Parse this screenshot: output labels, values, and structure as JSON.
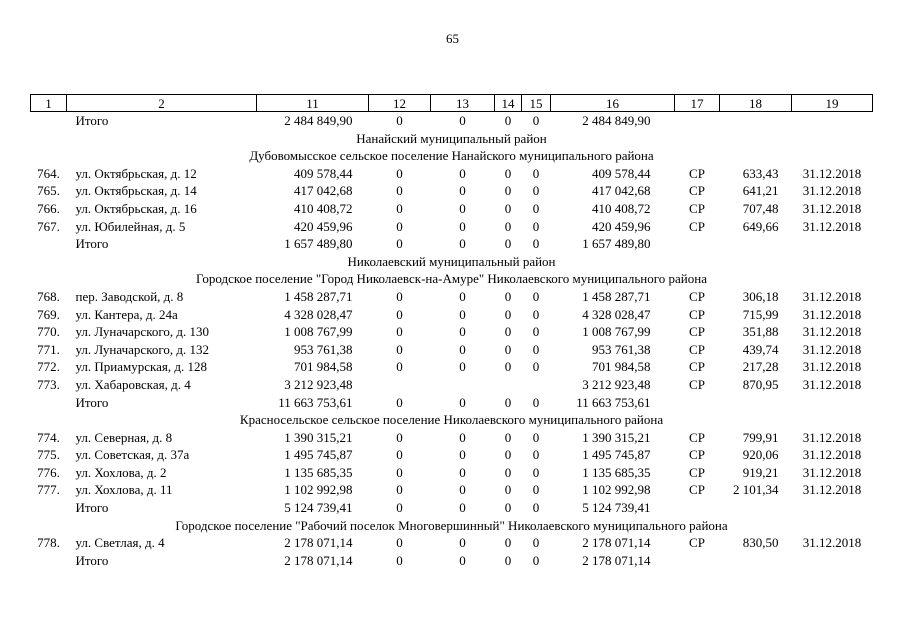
{
  "page": {
    "number": "65"
  },
  "table": {
    "header": [
      "1",
      "2",
      "11",
      "12",
      "13",
      "14",
      "15",
      "16",
      "17",
      "18",
      "19"
    ],
    "rows": [
      {
        "type": "total",
        "cells": [
          "",
          "Итого",
          "2 484 849,90",
          "0",
          "0",
          "0",
          "0",
          "2 484 849,90",
          "",
          "",
          ""
        ]
      },
      {
        "type": "section",
        "text": "Нанайский муниципальный район"
      },
      {
        "type": "section",
        "text": "Дубовомысское сельское поселение Нанайского муниципального района"
      },
      {
        "type": "data",
        "cells": [
          "764.",
          "ул. Октябрьская, д. 12",
          "409 578,44",
          "0",
          "0",
          "0",
          "0",
          "409 578,44",
          "СР",
          "633,43",
          "31.12.2018"
        ]
      },
      {
        "type": "data",
        "cells": [
          "765.",
          "ул. Октябрьская, д. 14",
          "417 042,68",
          "0",
          "0",
          "0",
          "0",
          "417 042,68",
          "СР",
          "641,21",
          "31.12.2018"
        ]
      },
      {
        "type": "data",
        "cells": [
          "766.",
          "ул. Октябрьская, д. 16",
          "410 408,72",
          "0",
          "0",
          "0",
          "0",
          "410 408,72",
          "СР",
          "707,48",
          "31.12.2018"
        ]
      },
      {
        "type": "data",
        "cells": [
          "767.",
          "ул. Юбилейная, д. 5",
          "420 459,96",
          "0",
          "0",
          "0",
          "0",
          "420 459,96",
          "СР",
          "649,66",
          "31.12.2018"
        ]
      },
      {
        "type": "total",
        "cells": [
          "",
          "Итого",
          "1 657 489,80",
          "0",
          "0",
          "0",
          "0",
          "1 657 489,80",
          "",
          "",
          ""
        ]
      },
      {
        "type": "section",
        "text": "Николаевский муниципальный район"
      },
      {
        "type": "section",
        "text": "Городское поселение \"Город Николаевск-на-Амуре\" Николаевского муниципального района"
      },
      {
        "type": "data",
        "cells": [
          "768.",
          "пер. Заводской, д. 8",
          "1 458 287,71",
          "0",
          "0",
          "0",
          "0",
          "1 458 287,71",
          "СР",
          "306,18",
          "31.12.2018"
        ]
      },
      {
        "type": "data",
        "cells": [
          "769.",
          "ул. Кантера, д. 24а",
          "4 328 028,47",
          "0",
          "0",
          "0",
          "0",
          "4 328 028,47",
          "СР",
          "715,99",
          "31.12.2018"
        ]
      },
      {
        "type": "data",
        "cells": [
          "770.",
          "ул. Луначарского, д. 130",
          "1 008 767,99",
          "0",
          "0",
          "0",
          "0",
          "1 008 767,99",
          "СР",
          "351,88",
          "31.12.2018"
        ]
      },
      {
        "type": "data",
        "cells": [
          "771.",
          "ул. Луначарского, д. 132",
          "953 761,38",
          "0",
          "0",
          "0",
          "0",
          "953 761,38",
          "СР",
          "439,74",
          "31.12.2018"
        ]
      },
      {
        "type": "data",
        "cells": [
          "772.",
          "ул. Приамурская, д. 128",
          "701 984,58",
          "0",
          "0",
          "0",
          "0",
          "701 984,58",
          "СР",
          "217,28",
          "31.12.2018"
        ]
      },
      {
        "type": "data",
        "cells": [
          "773.",
          "ул. Хабаровская, д. 4",
          "3 212 923,48",
          "",
          "",
          "",
          "",
          "3 212 923,48",
          "СР",
          "870,95",
          "31.12.2018"
        ]
      },
      {
        "type": "total",
        "cells": [
          "",
          "Итого",
          "11 663 753,61",
          "0",
          "0",
          "0",
          "0",
          "11 663 753,61",
          "",
          "",
          ""
        ]
      },
      {
        "type": "section",
        "text": "Красносельское сельское поселение Николаевского муниципального района"
      },
      {
        "type": "data",
        "cells": [
          "774.",
          "ул. Северная, д. 8",
          "1 390 315,21",
          "0",
          "0",
          "0",
          "0",
          "1 390 315,21",
          "СР",
          "799,91",
          "31.12.2018"
        ]
      },
      {
        "type": "data",
        "cells": [
          "775.",
          "ул. Советская, д. 37а",
          "1 495 745,87",
          "0",
          "0",
          "0",
          "0",
          "1 495 745,87",
          "СР",
          "920,06",
          "31.12.2018"
        ]
      },
      {
        "type": "data",
        "cells": [
          "776.",
          "ул. Хохлова, д. 2",
          "1 135 685,35",
          "0",
          "0",
          "0",
          "0",
          "1 135 685,35",
          "СР",
          "919,21",
          "31.12.2018"
        ]
      },
      {
        "type": "data",
        "cells": [
          "777.",
          "ул. Хохлова, д. 11",
          "1 102 992,98",
          "0",
          "0",
          "0",
          "0",
          "1 102 992,98",
          "СР",
          "2 101,34",
          "31.12.2018"
        ]
      },
      {
        "type": "total",
        "cells": [
          "",
          "Итого",
          "5 124 739,41",
          "0",
          "0",
          "0",
          "0",
          "5 124 739,41",
          "",
          "",
          ""
        ]
      },
      {
        "type": "section",
        "text": "Городское поселение \"Рабочий поселок Многовершинный\" Николаевского муниципального района"
      },
      {
        "type": "data",
        "cells": [
          "778.",
          "ул. Светлая, д. 4",
          "2 178 071,14",
          "0",
          "0",
          "0",
          "0",
          "2 178 071,14",
          "СР",
          "830,50",
          "31.12.2018"
        ]
      },
      {
        "type": "total",
        "cells": [
          "",
          "Итого",
          "2 178 071,14",
          "0",
          "0",
          "0",
          "0",
          "2 178 071,14",
          "",
          "",
          ""
        ]
      }
    ]
  }
}
